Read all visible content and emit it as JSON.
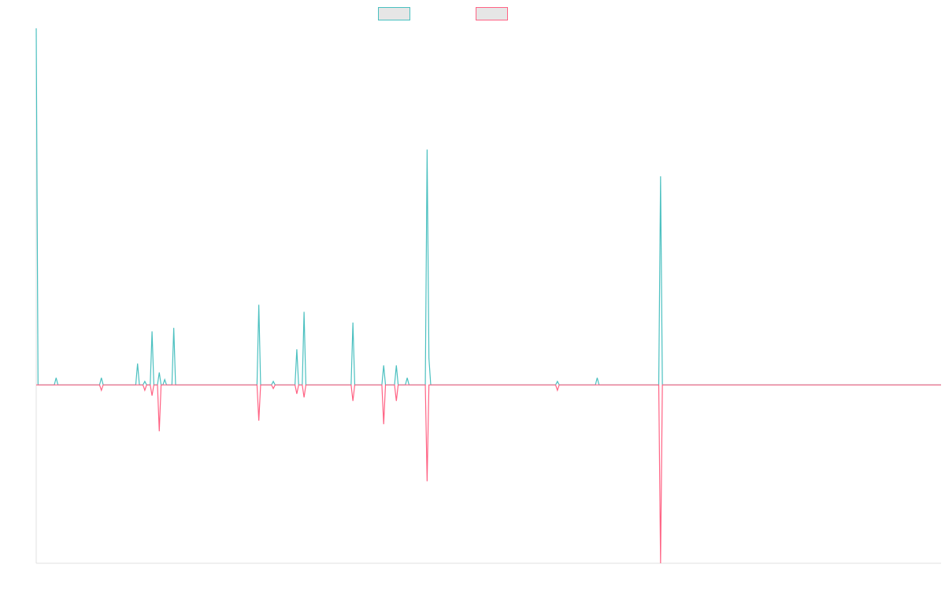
{
  "chart_data": {
    "type": "line",
    "title": "",
    "xlabel": "",
    "ylabel": "",
    "grid": false,
    "legend_position": "top-center",
    "x_range": [
      0,
      500
    ],
    "y_range": [
      -100,
      200
    ],
    "series": [
      {
        "name": "",
        "color": "#4bc0c0",
        "fill": "#e6e6e6",
        "points": [
          [
            0,
            200
          ],
          [
            1,
            0
          ],
          [
            10,
            0
          ],
          [
            11,
            4
          ],
          [
            12,
            0
          ],
          [
            35,
            0
          ],
          [
            36,
            4
          ],
          [
            37,
            0
          ],
          [
            55,
            0
          ],
          [
            56,
            12
          ],
          [
            57,
            0
          ],
          [
            59,
            0
          ],
          [
            60,
            2
          ],
          [
            61,
            0
          ],
          [
            63,
            0
          ],
          [
            64,
            30
          ],
          [
            65,
            0
          ],
          [
            67,
            0
          ],
          [
            68,
            7
          ],
          [
            69,
            0
          ],
          [
            70,
            0
          ],
          [
            71,
            3
          ],
          [
            72,
            0
          ],
          [
            75,
            0
          ],
          [
            76,
            32
          ],
          [
            77,
            0
          ],
          [
            79,
            0
          ],
          [
            80,
            0
          ],
          [
            81,
            0
          ],
          [
            122,
            0
          ],
          [
            123,
            45
          ],
          [
            124,
            0
          ],
          [
            130,
            0
          ],
          [
            131,
            2
          ],
          [
            132,
            0
          ],
          [
            143,
            0
          ],
          [
            144,
            20
          ],
          [
            145,
            0
          ],
          [
            147,
            0
          ],
          [
            148,
            41
          ],
          [
            149,
            0
          ],
          [
            174,
            0
          ],
          [
            175,
            35
          ],
          [
            176,
            0
          ],
          [
            191,
            0
          ],
          [
            192,
            11
          ],
          [
            193,
            0
          ],
          [
            197,
            0
          ],
          [
            198,
            0
          ],
          [
            199,
            11
          ],
          [
            200,
            0
          ],
          [
            204,
            0
          ],
          [
            205,
            4
          ],
          [
            206,
            0
          ],
          [
            215,
            0
          ],
          [
            216,
            132
          ],
          [
            217,
            15
          ],
          [
            218,
            0
          ],
          [
            287,
            0
          ],
          [
            288,
            2
          ],
          [
            289,
            0
          ],
          [
            309,
            0
          ],
          [
            310,
            4
          ],
          [
            311,
            0
          ],
          [
            344,
            0
          ],
          [
            345,
            117
          ],
          [
            346,
            0
          ],
          [
            500,
            0
          ]
        ]
      },
      {
        "name": "",
        "color": "#ff6384",
        "fill": "#e6e6e6",
        "points": [
          [
            0,
            0
          ],
          [
            35,
            0
          ],
          [
            36,
            -3
          ],
          [
            37,
            0
          ],
          [
            59,
            0
          ],
          [
            60,
            -3
          ],
          [
            61,
            0
          ],
          [
            63,
            0
          ],
          [
            64,
            -6
          ],
          [
            65,
            0
          ],
          [
            67,
            0
          ],
          [
            68,
            -26
          ],
          [
            69,
            0
          ],
          [
            122,
            0
          ],
          [
            123,
            -20
          ],
          [
            124,
            0
          ],
          [
            130,
            0
          ],
          [
            131,
            -2
          ],
          [
            132,
            0
          ],
          [
            143,
            0
          ],
          [
            144,
            -5
          ],
          [
            145,
            0
          ],
          [
            147,
            0
          ],
          [
            148,
            -7
          ],
          [
            149,
            0
          ],
          [
            174,
            0
          ],
          [
            175,
            -9
          ],
          [
            176,
            0
          ],
          [
            191,
            0
          ],
          [
            192,
            -22
          ],
          [
            193,
            0
          ],
          [
            198,
            0
          ],
          [
            199,
            -9
          ],
          [
            200,
            0
          ],
          [
            215,
            0
          ],
          [
            216,
            -54
          ],
          [
            217,
            0
          ],
          [
            287,
            0
          ],
          [
            288,
            -3
          ],
          [
            289,
            0
          ],
          [
            344,
            0
          ],
          [
            345,
            -100
          ],
          [
            346,
            0
          ],
          [
            500,
            0
          ]
        ]
      }
    ]
  }
}
